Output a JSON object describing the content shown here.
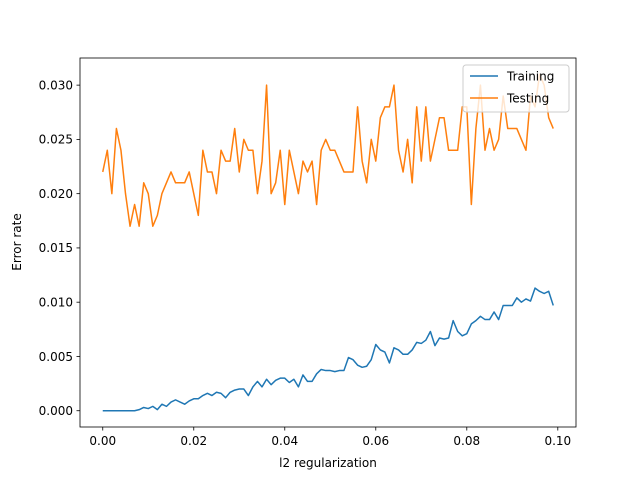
{
  "chart_data": {
    "type": "line",
    "title": "",
    "xlabel": "l2 regularization",
    "ylabel": "Error rate",
    "xlim": [
      -0.005,
      0.104
    ],
    "ylim": [
      -0.0015,
      0.0325
    ],
    "xticks": [
      0.0,
      0.02,
      0.04,
      0.06,
      0.08,
      0.1
    ],
    "xtick_labels": [
      "0.00",
      "0.02",
      "0.04",
      "0.06",
      "0.08",
      "0.10"
    ],
    "yticks": [
      0.0,
      0.005,
      0.01,
      0.015,
      0.02,
      0.025,
      0.03
    ],
    "ytick_labels": [
      "0.000",
      "0.005",
      "0.010",
      "0.015",
      "0.020",
      "0.025",
      "0.030"
    ],
    "grid": false,
    "legend_position": "top-right",
    "x": [
      0.0,
      0.001,
      0.002,
      0.003,
      0.004,
      0.005,
      0.006,
      0.007,
      0.008,
      0.009,
      0.01,
      0.011,
      0.012,
      0.013,
      0.014,
      0.015,
      0.016,
      0.017,
      0.018,
      0.019,
      0.02,
      0.021,
      0.022,
      0.023,
      0.024,
      0.025,
      0.026,
      0.027,
      0.028,
      0.029,
      0.03,
      0.031,
      0.032,
      0.033,
      0.034,
      0.035,
      0.036,
      0.037,
      0.038,
      0.039,
      0.04,
      0.041,
      0.042,
      0.043,
      0.044,
      0.045,
      0.046,
      0.047,
      0.048,
      0.049,
      0.05,
      0.051,
      0.052,
      0.053,
      0.054,
      0.055,
      0.056,
      0.057,
      0.058,
      0.059,
      0.06,
      0.061,
      0.062,
      0.063,
      0.064,
      0.065,
      0.066,
      0.067,
      0.068,
      0.069,
      0.07,
      0.071,
      0.072,
      0.073,
      0.074,
      0.075,
      0.076,
      0.077,
      0.078,
      0.079,
      0.08,
      0.081,
      0.082,
      0.083,
      0.084,
      0.085,
      0.086,
      0.087,
      0.088,
      0.089,
      0.09,
      0.091,
      0.092,
      0.093,
      0.094,
      0.095,
      0.096,
      0.097,
      0.098,
      0.099
    ],
    "series": [
      {
        "name": "Training",
        "color": "#1f77b4",
        "values": [
          0.0,
          0.0,
          0.0,
          0.0,
          0.0,
          0.0,
          0.0,
          0.0,
          0.0001,
          0.0003,
          0.0002,
          0.0004,
          0.0001,
          0.0006,
          0.0004,
          0.0008,
          0.001,
          0.0008,
          0.0006,
          0.0009,
          0.0011,
          0.0011,
          0.0014,
          0.0016,
          0.0014,
          0.0017,
          0.0016,
          0.0012,
          0.0017,
          0.0019,
          0.002,
          0.002,
          0.0014,
          0.0022,
          0.0027,
          0.0022,
          0.0029,
          0.0024,
          0.0028,
          0.003,
          0.003,
          0.0026,
          0.0029,
          0.0022,
          0.0033,
          0.0027,
          0.0027,
          0.0034,
          0.0038,
          0.0037,
          0.0037,
          0.0036,
          0.0037,
          0.0037,
          0.0049,
          0.0047,
          0.0042,
          0.004,
          0.0041,
          0.0047,
          0.0061,
          0.0056,
          0.0054,
          0.0044,
          0.0058,
          0.0056,
          0.0052,
          0.0052,
          0.0056,
          0.0063,
          0.0062,
          0.0065,
          0.0073,
          0.006,
          0.0067,
          0.0066,
          0.0067,
          0.0083,
          0.0073,
          0.0069,
          0.0071,
          0.008,
          0.0083,
          0.0087,
          0.0084,
          0.0084,
          0.0091,
          0.0084,
          0.0097,
          0.0097,
          0.0097,
          0.0104,
          0.01,
          0.0103,
          0.0101,
          0.0113,
          0.011,
          0.0108,
          0.011,
          0.0097
        ]
      },
      {
        "name": "Testing",
        "color": "#ff7f0e",
        "values": [
          0.022,
          0.024,
          0.02,
          0.026,
          0.024,
          0.02,
          0.017,
          0.019,
          0.017,
          0.021,
          0.02,
          0.017,
          0.018,
          0.02,
          0.021,
          0.022,
          0.021,
          0.021,
          0.021,
          0.022,
          0.02,
          0.018,
          0.024,
          0.022,
          0.022,
          0.02,
          0.024,
          0.023,
          0.023,
          0.026,
          0.022,
          0.025,
          0.024,
          0.024,
          0.02,
          0.023,
          0.03,
          0.02,
          0.021,
          0.024,
          0.019,
          0.024,
          0.022,
          0.02,
          0.023,
          0.022,
          0.023,
          0.019,
          0.024,
          0.025,
          0.024,
          0.024,
          0.023,
          0.022,
          0.022,
          0.022,
          0.028,
          0.023,
          0.021,
          0.025,
          0.023,
          0.027,
          0.028,
          0.028,
          0.03,
          0.024,
          0.022,
          0.025,
          0.021,
          0.028,
          0.023,
          0.028,
          0.023,
          0.025,
          0.027,
          0.027,
          0.024,
          0.024,
          0.024,
          0.028,
          0.028,
          0.019,
          0.026,
          0.03,
          0.024,
          0.026,
          0.024,
          0.025,
          0.029,
          0.026,
          0.026,
          0.026,
          0.025,
          0.024,
          0.029,
          0.028,
          0.031,
          0.03,
          0.027,
          0.026
        ]
      }
    ]
  }
}
